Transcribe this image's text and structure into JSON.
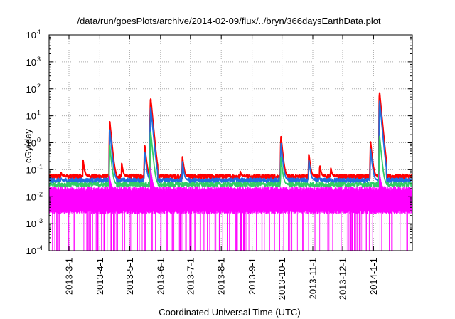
{
  "chart_data": {
    "type": "line",
    "title": "/data/run/goesPlots/archive/2014-02-09/flux/../bryn/366daysEarthData.plot",
    "xlabel": "Coordinated Universal Time (UTC)",
    "ylabel": "cGy/day",
    "yscale": "log",
    "ylim": [
      0.0001,
      10000
    ],
    "xlim": [
      "2013-02-09",
      "2014-02-09"
    ],
    "grid": true,
    "legend": "none",
    "y_ticks": [
      {
        "value": 0.0001,
        "base": "10",
        "exp": "-4"
      },
      {
        "value": 0.001,
        "base": "10",
        "exp": "-3"
      },
      {
        "value": 0.01,
        "base": "10",
        "exp": "-2"
      },
      {
        "value": 0.1,
        "base": "10",
        "exp": "-1"
      },
      {
        "value": 1,
        "base": "10",
        "exp": "0"
      },
      {
        "value": 10,
        "base": "10",
        "exp": "1"
      },
      {
        "value": 100,
        "base": "10",
        "exp": "2"
      },
      {
        "value": 1000,
        "base": "10",
        "exp": "3"
      },
      {
        "value": 10000,
        "base": "10",
        "exp": "4"
      }
    ],
    "x_ticks": [
      {
        "label": "2013-3-1",
        "date": "2013-03-01"
      },
      {
        "label": "2013-4-1",
        "date": "2013-04-01"
      },
      {
        "label": "2013-5-1",
        "date": "2013-05-01"
      },
      {
        "label": "2013-6-1",
        "date": "2013-06-01"
      },
      {
        "label": "2013-7-1",
        "date": "2013-07-01"
      },
      {
        "label": "2013-8-1",
        "date": "2013-08-01"
      },
      {
        "label": "2013-9-1",
        "date": "2013-09-01"
      },
      {
        "label": "2013-10-1",
        "date": "2013-10-01"
      },
      {
        "label": "2013-11-1",
        "date": "2013-11-01"
      },
      {
        "label": "2013-12-1",
        "date": "2013-12-01"
      },
      {
        "label": "2014-1-1",
        "date": "2014-01-01"
      }
    ],
    "series": [
      {
        "color": "#ff0000",
        "baseline": 0.055,
        "points": [
          {
            "date": "2013-02-21",
            "value": 0.08
          },
          {
            "date": "2013-03-15",
            "value": 0.25
          },
          {
            "date": "2013-04-11",
            "value": 6.0
          },
          {
            "date": "2013-04-23",
            "value": 0.17
          },
          {
            "date": "2013-05-16",
            "value": 0.9
          },
          {
            "date": "2013-05-22",
            "value": 50
          },
          {
            "date": "2013-06-23",
            "value": 0.3
          },
          {
            "date": "2013-08-20",
            "value": 0.09
          },
          {
            "date": "2013-09-30",
            "value": 1.8
          },
          {
            "date": "2013-10-28",
            "value": 0.4
          },
          {
            "date": "2013-11-08",
            "value": 0.15
          },
          {
            "date": "2013-11-19",
            "value": 0.12
          },
          {
            "date": "2013-12-29",
            "value": 1.1
          },
          {
            "date": "2014-01-07",
            "value": 80
          }
        ]
      },
      {
        "color": "#1f6fe0",
        "baseline": 0.04,
        "points": [
          {
            "date": "2013-04-11",
            "value": 3.0
          },
          {
            "date": "2013-05-16",
            "value": 0.5
          },
          {
            "date": "2013-05-22",
            "value": 25
          },
          {
            "date": "2013-06-23",
            "value": 0.2
          },
          {
            "date": "2013-09-30",
            "value": 1.0
          },
          {
            "date": "2013-10-28",
            "value": 0.25
          },
          {
            "date": "2013-12-29",
            "value": 0.6
          },
          {
            "date": "2014-01-07",
            "value": 40
          }
        ]
      },
      {
        "color": "#33cc66",
        "baseline": 0.028,
        "points": [
          {
            "date": "2013-04-11",
            "value": 0.8
          },
          {
            "date": "2013-05-22",
            "value": 3.0
          },
          {
            "date": "2013-09-30",
            "value": 0.3
          },
          {
            "date": "2014-01-07",
            "value": 2.0
          }
        ]
      },
      {
        "color": "#ff00ff",
        "baseline": 0.02,
        "floor": 0.0025,
        "points": [
          {
            "date": "2013-04-11",
            "value": 0.06
          },
          {
            "date": "2013-05-22",
            "value": 0.15
          },
          {
            "date": "2014-01-07",
            "value": 0.1
          }
        ]
      }
    ]
  }
}
